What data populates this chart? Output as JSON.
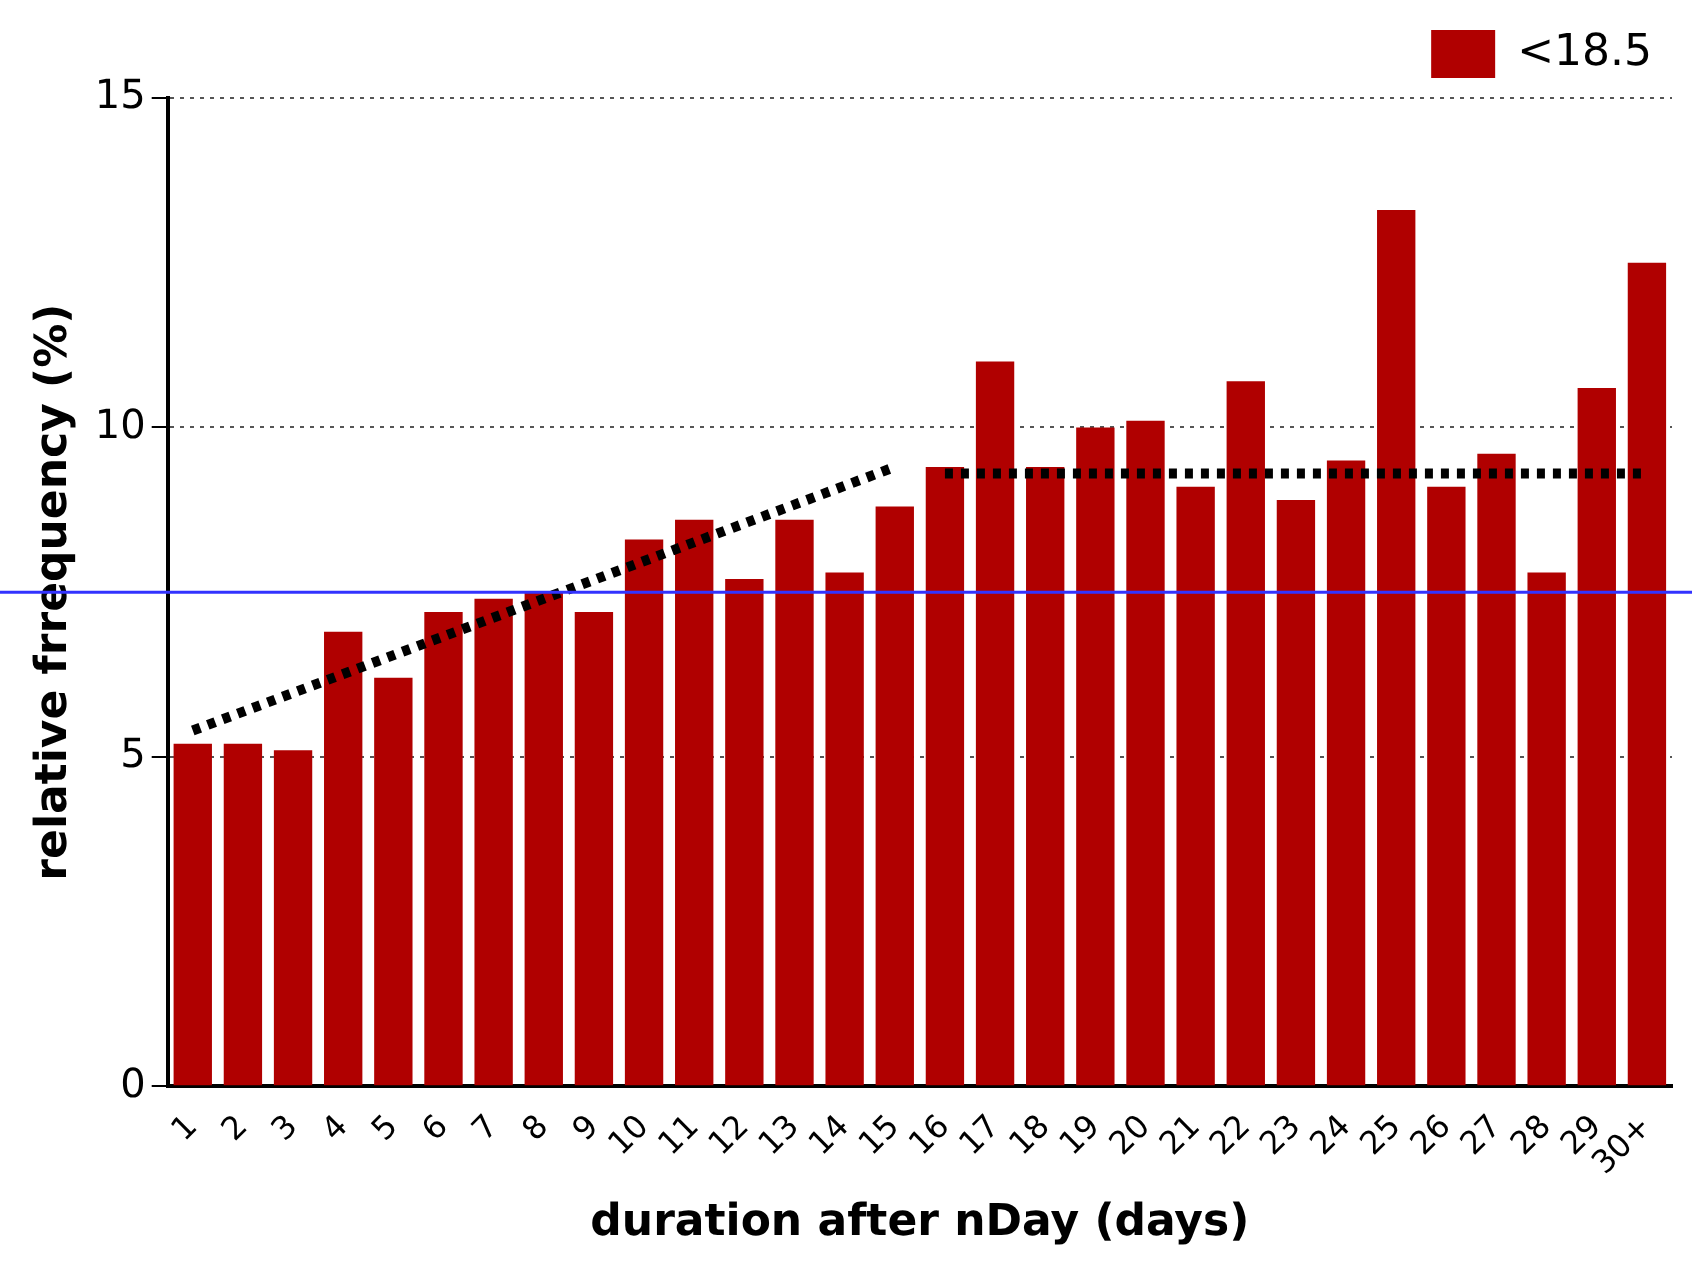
{
  "chart_data": {
    "type": "bar",
    "xlabel": "duration after nDay (days)",
    "ylabel": "relative frrequency (%)",
    "categories": [
      "1",
      "2",
      "3",
      "4",
      "5",
      "6",
      "7",
      "8",
      "9",
      "10",
      "11",
      "12",
      "13",
      "14",
      "15",
      "16",
      "17",
      "18",
      "19",
      "20",
      "21",
      "22",
      "23",
      "24",
      "25",
      "26",
      "27",
      "28",
      "29",
      "30+"
    ],
    "series": [
      {
        "name": "<18.5",
        "color": "#b00000",
        "values": [
          5.2,
          5.2,
          5.1,
          6.9,
          6.2,
          7.2,
          7.4,
          7.5,
          7.2,
          8.3,
          8.6,
          7.7,
          8.6,
          7.8,
          8.8,
          9.4,
          11.0,
          9.4,
          10.0,
          10.1,
          9.1,
          10.7,
          8.9,
          9.5,
          13.3,
          9.1,
          9.6,
          7.8,
          10.6,
          12.5
        ]
      },
      {
        "type": "line",
        "color": "#000000",
        "line_style": "dotted",
        "marker": "none",
        "x": [
          "1",
          "15"
        ],
        "values": [
          5.4,
          9.4
        ]
      },
      {
        "type": "line",
        "color": "#000000",
        "line_style": "dotted",
        "marker": "none",
        "x": [
          "16",
          "30+"
        ],
        "values": [
          9.3,
          9.3
        ]
      }
    ],
    "ylim": [
      0,
      15
    ],
    "yticks": [
      0,
      5,
      10,
      15
    ],
    "grid": "y",
    "legend": "top right",
    "ref_lines": [
      {
        "axis": "y",
        "value": 7.5,
        "color": "#3333ff"
      }
    ]
  }
}
